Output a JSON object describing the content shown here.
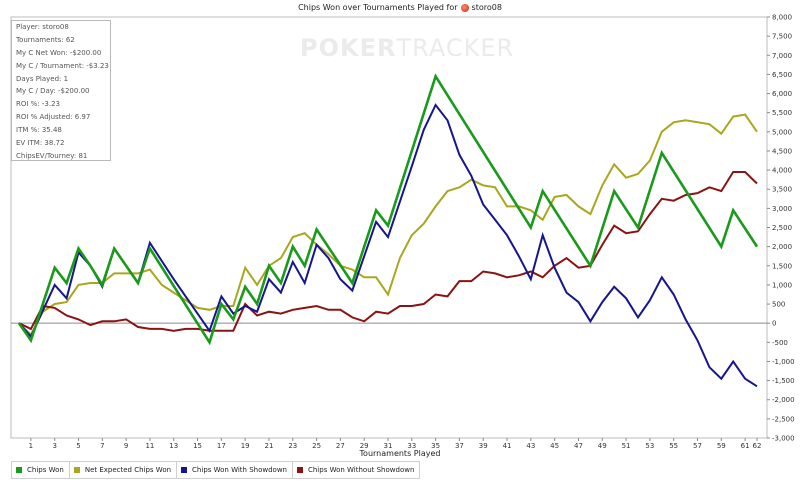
{
  "title": {
    "text": "Chips Won over Tournaments Played for",
    "player": "storo08"
  },
  "watermark": {
    "bold": "POKER",
    "light": "TRACKER"
  },
  "stats": [
    "Player: storo08",
    "Tournaments: 62",
    "My C Net Won: -$200.00",
    "My C / Tournament: -$3.23",
    "Days Played: 1",
    "My C / Day: -$200.00",
    "ROI %: -3.23",
    "ROI % Adjusted: 6.97",
    "ITM %: 35.48",
    "EV ITM: 38.72",
    "ChipsEV/Tourney: 81"
  ],
  "chart_data": {
    "type": "line",
    "xlabel": "Tournaments Played",
    "ylabel": "",
    "xlim": [
      0,
      62
    ],
    "ylim": [
      -3000,
      8000
    ],
    "x_ticks": [
      1,
      3,
      5,
      7,
      9,
      11,
      13,
      15,
      17,
      19,
      21,
      23,
      25,
      27,
      29,
      31,
      33,
      35,
      37,
      39,
      41,
      43,
      45,
      47,
      49,
      51,
      53,
      55,
      57,
      59,
      61,
      62
    ],
    "y_ticks": [
      -3000,
      -2500,
      -2000,
      -1500,
      -1000,
      -500,
      0,
      500,
      1000,
      1500,
      2000,
      2500,
      3000,
      3500,
      4000,
      4500,
      5000,
      5500,
      6000,
      6500,
      7000,
      7500,
      8000
    ],
    "y_tick_labels": [
      "-3,000",
      "-2,500",
      "-2,000",
      "-1,500",
      "-1,000",
      "-500",
      "0",
      "500",
      "1,000",
      "1,500",
      "2,000",
      "2,500",
      "3,000",
      "3,500",
      "4,000",
      "4,500",
      "5,000",
      "5,500",
      "6,000",
      "6,500",
      "7,000",
      "7,500",
      "8,000"
    ],
    "grid": "y-zero-line",
    "legend": "bottom-left",
    "series": [
      {
        "name": "Chips Won",
        "color": "#1a9a1a",
        "points": [
          [
            0,
            0
          ],
          [
            1,
            -450
          ],
          [
            3,
            1450
          ],
          [
            4,
            1050
          ],
          [
            5,
            1950
          ],
          [
            6,
            1500
          ],
          [
            7,
            1000
          ],
          [
            8,
            1950
          ],
          [
            10,
            1050
          ],
          [
            11,
            1950
          ],
          [
            16,
            -500
          ],
          [
            17,
            500
          ],
          [
            18,
            100
          ],
          [
            19,
            950
          ],
          [
            20,
            500
          ],
          [
            21,
            1500
          ],
          [
            22,
            1050
          ],
          [
            23,
            2000
          ],
          [
            24,
            1500
          ],
          [
            25,
            2450
          ],
          [
            28,
            1050
          ],
          [
            30,
            2950
          ],
          [
            31,
            2550
          ],
          [
            35,
            6450
          ],
          [
            43,
            2500
          ],
          [
            44,
            3450
          ],
          [
            48,
            1500
          ],
          [
            50,
            3450
          ],
          [
            52,
            2500
          ],
          [
            54,
            4450
          ],
          [
            59,
            2000
          ],
          [
            60,
            2950
          ],
          [
            62,
            2000
          ]
        ]
      },
      {
        "name": "Net Expected Chips Won",
        "color": "#a8a71f",
        "points": [
          [
            0,
            0
          ],
          [
            1,
            -300
          ],
          [
            2,
            300
          ],
          [
            3,
            500
          ],
          [
            4,
            550
          ],
          [
            5,
            1000
          ],
          [
            6,
            1050
          ],
          [
            7,
            1050
          ],
          [
            8,
            1300
          ],
          [
            9,
            1300
          ],
          [
            10,
            1300
          ],
          [
            11,
            1400
          ],
          [
            12,
            1000
          ],
          [
            13,
            800
          ],
          [
            14,
            600
          ],
          [
            15,
            400
          ],
          [
            16,
            350
          ],
          [
            17,
            450
          ],
          [
            18,
            450
          ],
          [
            19,
            1450
          ],
          [
            20,
            1000
          ],
          [
            21,
            1500
          ],
          [
            22,
            1700
          ],
          [
            23,
            2250
          ],
          [
            24,
            2350
          ],
          [
            25,
            2050
          ],
          [
            26,
            1800
          ],
          [
            27,
            1500
          ],
          [
            28,
            1400
          ],
          [
            29,
            1200
          ],
          [
            30,
            1200
          ],
          [
            31,
            750
          ],
          [
            32,
            1700
          ],
          [
            33,
            2300
          ],
          [
            34,
            2600
          ],
          [
            35,
            3050
          ],
          [
            36,
            3450
          ],
          [
            37,
            3550
          ],
          [
            38,
            3750
          ],
          [
            39,
            3600
          ],
          [
            40,
            3550
          ],
          [
            41,
            3050
          ],
          [
            42,
            3050
          ],
          [
            43,
            2950
          ],
          [
            44,
            2700
          ],
          [
            45,
            3300
          ],
          [
            46,
            3350
          ],
          [
            47,
            3050
          ],
          [
            48,
            2850
          ],
          [
            49,
            3600
          ],
          [
            50,
            4150
          ],
          [
            51,
            3800
          ],
          [
            52,
            3900
          ],
          [
            53,
            4250
          ],
          [
            54,
            5000
          ],
          [
            55,
            5250
          ],
          [
            56,
            5300
          ],
          [
            58,
            5200
          ],
          [
            59,
            4950
          ],
          [
            60,
            5400
          ],
          [
            61,
            5450
          ],
          [
            62,
            5000
          ]
        ]
      },
      {
        "name": "Chips Won With Showdown",
        "color": "#15158f",
        "points": [
          [
            0,
            0
          ],
          [
            1,
            -350
          ],
          [
            3,
            1000
          ],
          [
            4,
            650
          ],
          [
            5,
            1850
          ],
          [
            6,
            1500
          ],
          [
            7,
            950
          ],
          [
            8,
            1950
          ],
          [
            10,
            1050
          ],
          [
            11,
            2100
          ],
          [
            13,
            1150
          ],
          [
            16,
            -200
          ],
          [
            17,
            700
          ],
          [
            18,
            250
          ],
          [
            19,
            450
          ],
          [
            20,
            300
          ],
          [
            21,
            1150
          ],
          [
            22,
            800
          ],
          [
            23,
            1600
          ],
          [
            24,
            1050
          ],
          [
            25,
            2050
          ],
          [
            26,
            1700
          ],
          [
            27,
            1150
          ],
          [
            28,
            850
          ],
          [
            30,
            2650
          ],
          [
            31,
            2250
          ],
          [
            33,
            4100
          ],
          [
            34,
            5050
          ],
          [
            35,
            5700
          ],
          [
            36,
            5300
          ],
          [
            37,
            4400
          ],
          [
            38,
            3850
          ],
          [
            39,
            3100
          ],
          [
            40,
            2700
          ],
          [
            41,
            2300
          ],
          [
            42,
            1750
          ],
          [
            43,
            1150
          ],
          [
            44,
            2300
          ],
          [
            45,
            1450
          ],
          [
            46,
            800
          ],
          [
            47,
            550
          ],
          [
            48,
            50
          ],
          [
            49,
            550
          ],
          [
            50,
            950
          ],
          [
            51,
            650
          ],
          [
            52,
            150
          ],
          [
            53,
            600
          ],
          [
            54,
            1200
          ],
          [
            55,
            750
          ],
          [
            56,
            100
          ],
          [
            57,
            -450
          ],
          [
            58,
            -1150
          ],
          [
            59,
            -1450
          ],
          [
            60,
            -1000
          ],
          [
            61,
            -1450
          ],
          [
            62,
            -1650
          ]
        ]
      },
      {
        "name": "Chips Won Without Showdown",
        "color": "#8a1313",
        "points": [
          [
            0,
            0
          ],
          [
            1,
            -150
          ],
          [
            2,
            450
          ],
          [
            3,
            400
          ],
          [
            4,
            200
          ],
          [
            5,
            100
          ],
          [
            6,
            -50
          ],
          [
            7,
            50
          ],
          [
            8,
            50
          ],
          [
            9,
            100
          ],
          [
            10,
            -100
          ],
          [
            11,
            -150
          ],
          [
            12,
            -150
          ],
          [
            13,
            -200
          ],
          [
            14,
            -150
          ],
          [
            15,
            -150
          ],
          [
            16,
            -200
          ],
          [
            17,
            -200
          ],
          [
            18,
            -200
          ],
          [
            19,
            500
          ],
          [
            20,
            200
          ],
          [
            21,
            300
          ],
          [
            22,
            250
          ],
          [
            23,
            350
          ],
          [
            24,
            400
          ],
          [
            25,
            450
          ],
          [
            26,
            350
          ],
          [
            27,
            350
          ],
          [
            28,
            150
          ],
          [
            29,
            50
          ],
          [
            30,
            300
          ],
          [
            31,
            250
          ],
          [
            32,
            450
          ],
          [
            33,
            450
          ],
          [
            34,
            500
          ],
          [
            35,
            750
          ],
          [
            36,
            700
          ],
          [
            37,
            1100
          ],
          [
            38,
            1100
          ],
          [
            39,
            1350
          ],
          [
            40,
            1300
          ],
          [
            41,
            1200
          ],
          [
            42,
            1250
          ],
          [
            43,
            1350
          ],
          [
            44,
            1200
          ],
          [
            45,
            1500
          ],
          [
            46,
            1700
          ],
          [
            47,
            1450
          ],
          [
            48,
            1500
          ],
          [
            49,
            2050
          ],
          [
            50,
            2550
          ],
          [
            51,
            2350
          ],
          [
            52,
            2400
          ],
          [
            53,
            2850
          ],
          [
            54,
            3250
          ],
          [
            55,
            3200
          ],
          [
            56,
            3350
          ],
          [
            57,
            3400
          ],
          [
            58,
            3550
          ],
          [
            59,
            3450
          ],
          [
            60,
            3950
          ],
          [
            61,
            3950
          ],
          [
            62,
            3650
          ]
        ]
      }
    ]
  }
}
